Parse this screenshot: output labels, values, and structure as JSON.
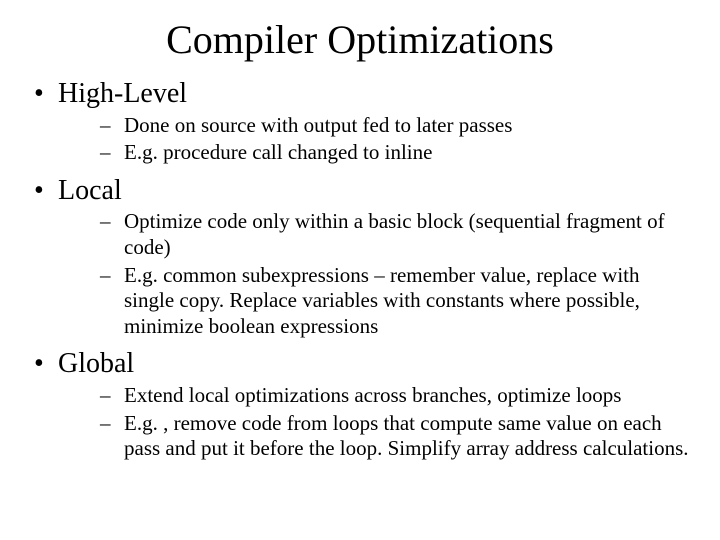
{
  "title": "Compiler Optimizations",
  "colors": {
    "background": "#ffffff",
    "text": "#000000"
  },
  "typography": {
    "family": "Times New Roman, serif",
    "title_size_pt": 40,
    "l1_size_pt": 28,
    "l2_size_pt": 21
  },
  "bullets": {
    "l1_marker": "•",
    "l2_marker": "–",
    "items": [
      {
        "label": "High-Level",
        "sub": [
          "Done on source with output fed to later passes",
          "E.g. procedure call changed to inline"
        ]
      },
      {
        "label": "Local",
        "sub": [
          "Optimize code only within a basic block (sequential fragment of code)",
          "E.g. common subexpressions – remember value, replace with single copy.   Replace variables with constants where possible, minimize boolean expressions"
        ]
      },
      {
        "label": "Global",
        "sub": [
          "Extend local optimizations across branches, optimize loops",
          "E.g. , remove code from loops that compute same value on each pass and put it before the loop.   Simplify array address calculations."
        ]
      }
    ]
  }
}
